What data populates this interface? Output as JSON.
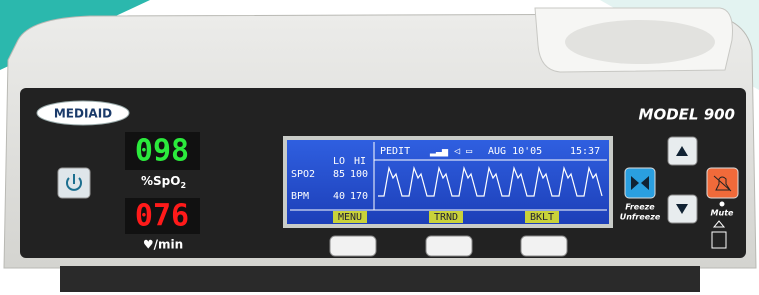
{
  "brand": "MEDIAID",
  "model": "MODEL 900",
  "spo2": {
    "reading": "098",
    "label": "%SpO",
    "subscript": "2"
  },
  "pulse": {
    "reading": "076",
    "label": "♥/min"
  },
  "lcd": {
    "header": [
      "PEDIT",
      "AUG 10'05",
      "15:37"
    ],
    "limits": {
      "columns": [
        "LO",
        "HI"
      ],
      "rows": [
        {
          "name": "SPO2",
          "lo": "85",
          "hi": "100"
        },
        {
          "name": "BPM",
          "lo": "40",
          "hi": "170"
        }
      ]
    },
    "softkeys": [
      "MENU",
      "TRND",
      "BKLT"
    ]
  },
  "buttons": {
    "freeze": [
      "Freeze",
      "Unfreeze"
    ],
    "mute": "Mute"
  }
}
